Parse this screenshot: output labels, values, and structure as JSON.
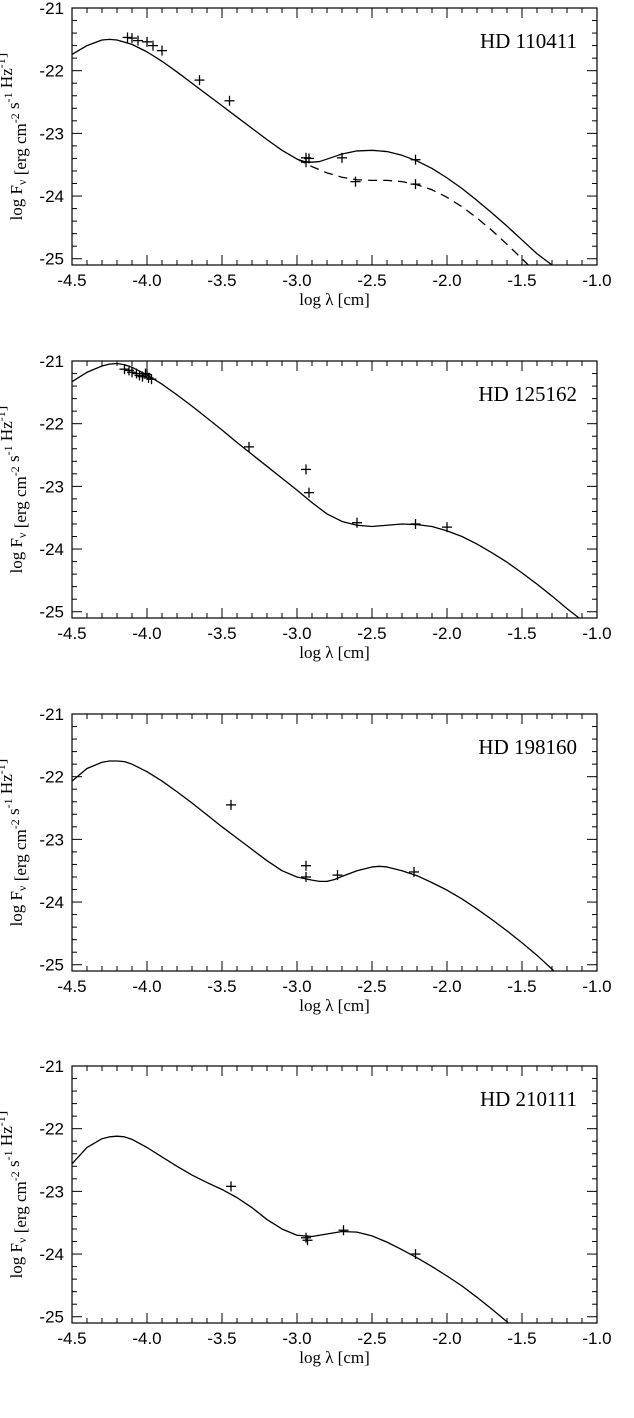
{
  "chart_data": [
    {
      "type": "line",
      "title": "HD 110411",
      "xlabel": "log λ [cm]",
      "ylabel": "log F_ν [erg cm^-2 s^-1 Hz^-1]",
      "xlim": [
        -4.5,
        -1.0
      ],
      "ylim": [
        -25.1,
        -21.0
      ],
      "xticks": [
        "-4.5",
        "-4.0",
        "-3.5",
        "-3.0",
        "-2.5",
        "-2.0",
        "-1.5",
        "-1.0"
      ],
      "yticks": [
        "-21",
        "-22",
        "-23",
        "-24",
        "-25"
      ],
      "series": [
        {
          "style": "solid",
          "x": [
            -4.5,
            -4.4,
            -4.3,
            -4.25,
            -4.2,
            -4.1,
            -4.0,
            -3.9,
            -3.8,
            -3.7,
            -3.6,
            -3.5,
            -3.4,
            -3.3,
            -3.2,
            -3.1,
            -3.0,
            -2.95,
            -2.9,
            -2.85,
            -2.8,
            -2.75,
            -2.7,
            -2.6,
            -2.5,
            -2.4,
            -2.3,
            -2.2,
            -2.1,
            -2.0,
            -1.9,
            -1.8,
            -1.7,
            -1.6,
            -1.5,
            -1.4,
            -1.3,
            -1.25
          ],
          "y": [
            -21.74,
            -21.6,
            -21.51,
            -21.5,
            -21.51,
            -21.58,
            -21.7,
            -21.85,
            -22.02,
            -22.2,
            -22.38,
            -22.56,
            -22.74,
            -22.92,
            -23.1,
            -23.27,
            -23.41,
            -23.45,
            -23.46,
            -23.45,
            -23.41,
            -23.37,
            -23.33,
            -23.28,
            -23.27,
            -23.29,
            -23.35,
            -23.44,
            -23.56,
            -23.71,
            -23.88,
            -24.07,
            -24.27,
            -24.48,
            -24.7,
            -24.92,
            -25.1,
            -25.2
          ]
        },
        {
          "style": "dashed",
          "x": [
            -3.0,
            -2.95,
            -2.9,
            -2.8,
            -2.7,
            -2.6,
            -2.5,
            -2.4,
            -2.3,
            -2.2,
            -2.1,
            -2.0,
            -1.9,
            -1.8,
            -1.7,
            -1.6,
            -1.5,
            -1.45
          ],
          "y": [
            -23.41,
            -23.47,
            -23.53,
            -23.63,
            -23.7,
            -23.74,
            -23.75,
            -23.75,
            -23.77,
            -23.82,
            -23.9,
            -24.02,
            -24.17,
            -24.35,
            -24.55,
            -24.77,
            -25.0,
            -25.12
          ]
        }
      ],
      "points": {
        "x": [
          -4.13,
          -4.1,
          -4.06,
          -4.0,
          -3.96,
          -3.9,
          -3.65,
          -3.45,
          -2.94,
          -2.94,
          -2.92,
          -2.7,
          -2.61,
          -2.21,
          -2.21
        ],
        "y": [
          -21.47,
          -21.48,
          -21.52,
          -21.54,
          -21.6,
          -21.68,
          -22.15,
          -22.48,
          -23.39,
          -23.46,
          -23.4,
          -23.39,
          -23.77,
          -23.42,
          -23.81
        ]
      }
    },
    {
      "type": "line",
      "title": "HD 125162",
      "xlabel": "log λ [cm]",
      "ylabel": "log F_ν [erg cm^-2 s^-1 Hz^-1]",
      "xlim": [
        -4.5,
        -1.0
      ],
      "ylim": [
        -25.1,
        -21.0
      ],
      "xticks": [
        "-4.5",
        "-4.0",
        "-3.5",
        "-3.0",
        "-2.5",
        "-2.0",
        "-1.5",
        "-1.0"
      ],
      "yticks": [
        "-21",
        "-22",
        "-23",
        "-24",
        "-25"
      ],
      "series": [
        {
          "style": "solid",
          "x": [
            -4.5,
            -4.4,
            -4.3,
            -4.25,
            -4.2,
            -4.15,
            -4.1,
            -4.0,
            -3.9,
            -3.8,
            -3.7,
            -3.6,
            -3.5,
            -3.4,
            -3.3,
            -3.2,
            -3.1,
            -3.0,
            -2.9,
            -2.8,
            -2.7,
            -2.6,
            -2.5,
            -2.4,
            -2.3,
            -2.2,
            -2.1,
            -2.0,
            -1.9,
            -1.8,
            -1.7,
            -1.6,
            -1.5,
            -1.4,
            -1.3,
            -1.2,
            -1.12
          ],
          "y": [
            -21.33,
            -21.18,
            -21.08,
            -21.05,
            -21.04,
            -21.06,
            -21.1,
            -21.22,
            -21.37,
            -21.54,
            -21.72,
            -21.91,
            -22.1,
            -22.3,
            -22.49,
            -22.68,
            -22.87,
            -23.06,
            -23.26,
            -23.44,
            -23.56,
            -23.62,
            -23.64,
            -23.62,
            -23.6,
            -23.61,
            -23.64,
            -23.71,
            -23.8,
            -23.92,
            -24.06,
            -24.21,
            -24.38,
            -24.56,
            -24.75,
            -24.95,
            -25.1
          ]
        }
      ],
      "points": {
        "x": [
          -4.15,
          -4.12,
          -4.1,
          -4.07,
          -4.05,
          -4.03,
          -4.01,
          -4.0,
          -3.99,
          -3.97,
          -3.32,
          -2.94,
          -2.92,
          -2.6,
          -2.21,
          -2.0
        ],
        "y": [
          -21.13,
          -21.15,
          -21.18,
          -21.2,
          -21.23,
          -21.25,
          -21.2,
          -21.22,
          -21.27,
          -21.29,
          -22.37,
          -22.73,
          -23.1,
          -23.58,
          -23.6,
          -23.65
        ]
      }
    },
    {
      "type": "line",
      "title": "HD 198160",
      "xlabel": "log λ [cm]",
      "ylabel": "log F_ν [erg cm^-2 s^-1 Hz^-1]",
      "xlim": [
        -4.5,
        -1.0
      ],
      "ylim": [
        -25.1,
        -21.0
      ],
      "xticks": [
        "-4.5",
        "-4.0",
        "-3.5",
        "-3.0",
        "-2.5",
        "-2.0",
        "-1.5",
        "-1.0"
      ],
      "yticks": [
        "-21",
        "-22",
        "-23",
        "-24",
        "-25"
      ],
      "series": [
        {
          "style": "solid",
          "x": [
            -4.5,
            -4.4,
            -4.3,
            -4.25,
            -4.2,
            -4.15,
            -4.1,
            -4.0,
            -3.9,
            -3.8,
            -3.7,
            -3.6,
            -3.5,
            -3.4,
            -3.3,
            -3.2,
            -3.1,
            -3.0,
            -2.9,
            -2.85,
            -2.8,
            -2.75,
            -2.7,
            -2.6,
            -2.5,
            -2.45,
            -2.4,
            -2.3,
            -2.2,
            -2.1,
            -2.0,
            -1.9,
            -1.8,
            -1.7,
            -1.6,
            -1.5,
            -1.4,
            -1.3,
            -1.28
          ],
          "y": [
            -22.07,
            -21.87,
            -21.77,
            -21.75,
            -21.75,
            -21.76,
            -21.8,
            -21.92,
            -22.07,
            -22.24,
            -22.42,
            -22.61,
            -22.8,
            -22.98,
            -23.16,
            -23.34,
            -23.5,
            -23.6,
            -23.65,
            -23.67,
            -23.67,
            -23.64,
            -23.59,
            -23.5,
            -23.44,
            -23.43,
            -23.44,
            -23.5,
            -23.58,
            -23.69,
            -23.81,
            -23.95,
            -24.11,
            -24.28,
            -24.46,
            -24.65,
            -24.85,
            -25.07,
            -25.12
          ]
        }
      ],
      "points": {
        "x": [
          -3.44,
          -2.94,
          -2.94,
          -2.73,
          -2.22
        ],
        "y": [
          -22.45,
          -23.42,
          -23.6,
          -23.57,
          -23.52
        ]
      }
    },
    {
      "type": "line",
      "title": "HD 210111",
      "xlabel": "log λ [cm]",
      "ylabel": "log F_ν [erg cm^-2 s^-1 Hz^-1]",
      "xlim": [
        -4.5,
        -1.0
      ],
      "ylim": [
        -25.1,
        -21.0
      ],
      "xticks": [
        "-4.5",
        "-4.0",
        "-3.5",
        "-3.0",
        "-2.5",
        "-2.0",
        "-1.5",
        "-1.0"
      ],
      "yticks": [
        "-21",
        "-22",
        "-23",
        "-24",
        "-25"
      ],
      "series": [
        {
          "style": "solid",
          "x": [
            -4.5,
            -4.4,
            -4.3,
            -4.25,
            -4.2,
            -4.15,
            -4.1,
            -4.0,
            -3.9,
            -3.8,
            -3.7,
            -3.6,
            -3.5,
            -3.4,
            -3.3,
            -3.2,
            -3.1,
            -3.0,
            -2.9,
            -2.8,
            -2.7,
            -2.6,
            -2.5,
            -2.4,
            -2.3,
            -2.2,
            -2.1,
            -2.0,
            -1.9,
            -1.8,
            -1.7,
            -1.6,
            -1.58
          ],
          "y": [
            -22.56,
            -22.3,
            -22.16,
            -22.13,
            -22.12,
            -22.13,
            -22.17,
            -22.3,
            -22.45,
            -22.6,
            -22.74,
            -22.86,
            -22.97,
            -23.1,
            -23.26,
            -23.45,
            -23.6,
            -23.7,
            -23.72,
            -23.68,
            -23.64,
            -23.65,
            -23.71,
            -23.81,
            -23.93,
            -24.06,
            -24.2,
            -24.35,
            -24.51,
            -24.69,
            -24.88,
            -25.08,
            -25.12
          ]
        }
      ],
      "points": {
        "x": [
          -3.44,
          -2.94,
          -2.93,
          -2.69,
          -2.21
        ],
        "y": [
          -22.92,
          -23.74,
          -23.78,
          -23.62,
          -24.0
        ]
      }
    }
  ]
}
